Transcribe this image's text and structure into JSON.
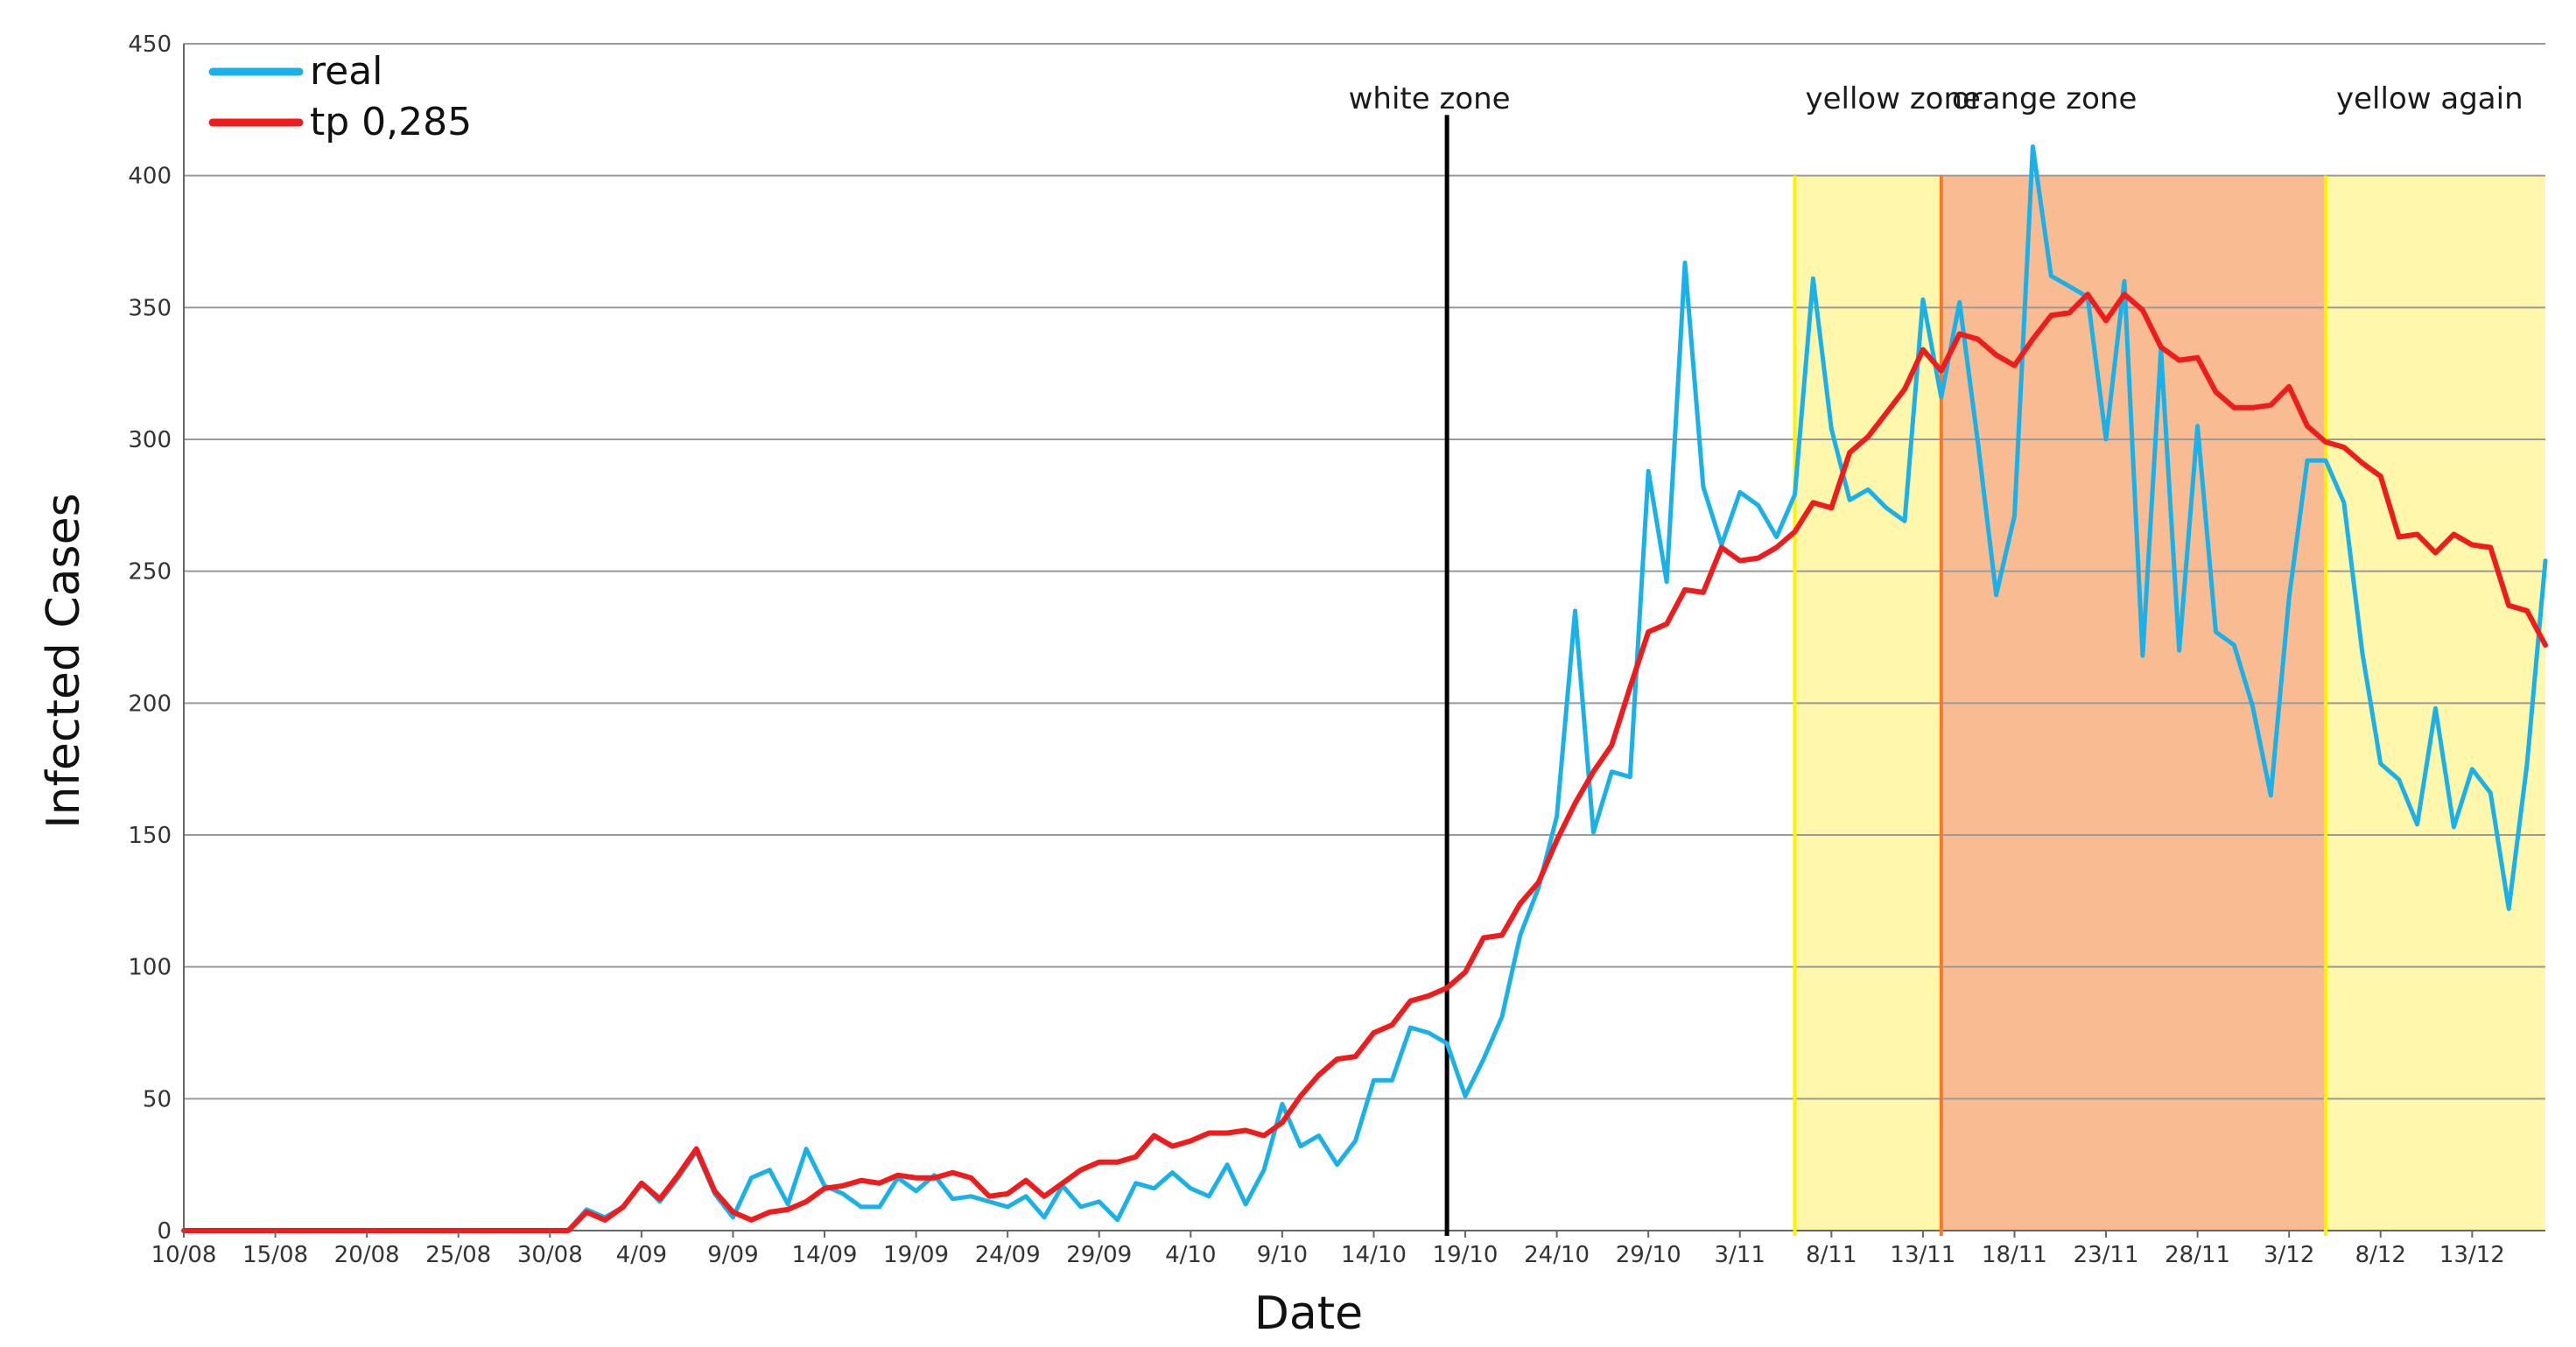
{
  "chart_data": {
    "type": "line",
    "xlabel": "Date",
    "ylabel": "Infected Cases",
    "ylim": [
      0,
      450
    ],
    "yticks": [
      0,
      50,
      100,
      150,
      200,
      250,
      300,
      350,
      400,
      450
    ],
    "grid": "horizontal",
    "legend_position": "top-left",
    "x_tick_labels": [
      "10/08",
      "15/08",
      "20/08",
      "25/08",
      "30/08",
      "4/09",
      "9/09",
      "14/09",
      "19/09",
      "24/09",
      "29/09",
      "4/10",
      "9/10",
      "14/10",
      "19/10",
      "24/10",
      "29/10",
      "3/11",
      "8/11",
      "13/11",
      "18/11",
      "23/11",
      "28/11",
      "3/12",
      "8/12",
      "13/12"
    ],
    "x": [
      "10/08",
      "11/08",
      "12/08",
      "13/08",
      "14/08",
      "15/08",
      "16/08",
      "17/08",
      "18/08",
      "19/08",
      "20/08",
      "21/08",
      "22/08",
      "23/08",
      "24/08",
      "25/08",
      "26/08",
      "27/08",
      "28/08",
      "29/08",
      "30/08",
      "31/08",
      "1/09",
      "2/09",
      "3/09",
      "4/09",
      "5/09",
      "6/09",
      "7/09",
      "8/09",
      "9/09",
      "10/09",
      "11/09",
      "12/09",
      "13/09",
      "14/09",
      "15/09",
      "16/09",
      "17/09",
      "18/09",
      "19/09",
      "20/09",
      "21/09",
      "22/09",
      "23/09",
      "24/09",
      "25/09",
      "26/09",
      "27/09",
      "28/09",
      "29/09",
      "30/09",
      "1/10",
      "2/10",
      "3/10",
      "4/10",
      "5/10",
      "6/10",
      "7/10",
      "8/10",
      "9/10",
      "10/10",
      "11/10",
      "12/10",
      "13/10",
      "14/10",
      "15/10",
      "16/10",
      "17/10",
      "18/10",
      "19/10",
      "20/10",
      "21/10",
      "22/10",
      "23/10",
      "24/10",
      "25/10",
      "26/10",
      "27/10",
      "28/10",
      "29/10",
      "30/10",
      "31/10",
      "1/11",
      "2/11",
      "3/11",
      "4/11",
      "5/11",
      "6/11",
      "7/11",
      "8/11",
      "9/11",
      "10/11",
      "11/11",
      "12/11",
      "13/11",
      "14/11",
      "15/11",
      "16/11",
      "17/11",
      "18/11",
      "19/11",
      "20/11",
      "21/11",
      "22/11",
      "23/11",
      "24/11",
      "25/11",
      "26/11",
      "27/11",
      "28/11",
      "29/11",
      "30/11",
      "1/12",
      "2/12",
      "3/12",
      "4/12",
      "5/12",
      "6/12",
      "7/12",
      "8/12",
      "9/12",
      "10/12",
      "11/12",
      "12/12",
      "13/12",
      "14/12",
      "15/12",
      "16/12",
      "17/12"
    ],
    "series": [
      {
        "name": "real",
        "color": "#1ab0e8",
        "values": [
          0,
          0,
          0,
          0,
          0,
          0,
          0,
          0,
          0,
          0,
          0,
          0,
          0,
          0,
          0,
          0,
          0,
          0,
          0,
          0,
          0,
          0,
          8,
          5,
          9,
          18,
          11,
          20,
          30,
          14,
          5,
          20,
          23,
          10,
          31,
          17,
          14,
          9,
          9,
          20,
          15,
          21,
          12,
          13,
          11,
          9,
          13,
          5,
          17,
          9,
          11,
          4,
          18,
          16,
          22,
          16,
          13,
          25,
          10,
          23,
          48,
          32,
          36,
          25,
          34,
          57,
          57,
          77,
          75,
          71,
          51,
          65,
          81,
          112,
          130,
          157,
          235,
          151,
          174,
          172,
          288,
          246,
          367,
          282,
          260,
          280,
          275,
          263,
          279,
          361,
          304,
          277,
          281,
          274,
          269,
          353,
          316,
          352,
          299,
          241,
          271,
          411,
          362,
          358,
          354,
          300,
          360,
          218,
          334,
          220,
          305,
          227,
          222,
          199,
          165,
          240,
          292,
          292,
          276,
          219,
          177,
          171,
          154,
          198,
          153,
          175,
          166,
          122,
          177,
          254
        ]
      },
      {
        "name": "tp 0,285",
        "color": "#ee1c1c",
        "values": [
          0,
          0,
          0,
          0,
          0,
          0,
          0,
          0,
          0,
          0,
          0,
          0,
          0,
          0,
          0,
          0,
          0,
          0,
          0,
          0,
          0,
          0,
          7,
          4,
          9,
          18,
          12,
          21,
          31,
          15,
          7,
          4,
          7,
          8,
          11,
          16,
          17,
          19,
          18,
          21,
          20,
          20,
          22,
          20,
          13,
          14,
          19,
          13,
          18,
          23,
          26,
          26,
          28,
          36,
          32,
          34,
          37,
          37,
          38,
          36,
          41,
          51,
          59,
          65,
          66,
          75,
          78,
          87,
          89,
          92,
          98,
          111,
          112,
          124,
          132,
          148,
          162,
          174,
          184,
          206,
          227,
          230,
          243,
          242,
          259,
          254,
          255,
          259,
          265,
          276,
          274,
          295,
          301,
          310,
          319,
          334,
          326,
          340,
          338,
          332,
          328,
          338,
          347,
          348,
          355,
          345,
          355,
          349,
          335,
          330,
          331,
          318,
          312,
          312,
          313,
          320,
          305,
          299,
          297,
          291,
          286,
          263,
          264,
          257,
          264,
          260,
          259,
          237,
          235,
          222
        ]
      }
    ],
    "annotations": [
      {
        "label": "white zone",
        "x": "18/10",
        "color": "#000000"
      },
      {
        "label": "yellow zone",
        "x": "6/11",
        "color": "#fff200"
      },
      {
        "label": "orange zone",
        "x": "14/11",
        "color": "#f47a2a"
      },
      {
        "label": "yellow again",
        "x": "5/12",
        "color": "#fff200"
      }
    ],
    "shaded_regions": [
      {
        "from": "6/11",
        "to": "14/11",
        "color": "#fff7ab"
      },
      {
        "from": "14/11",
        "to": "5/12",
        "color": "#f8bb92"
      },
      {
        "from": "5/12",
        "to": "17/12",
        "color": "#fff7ab"
      }
    ]
  }
}
